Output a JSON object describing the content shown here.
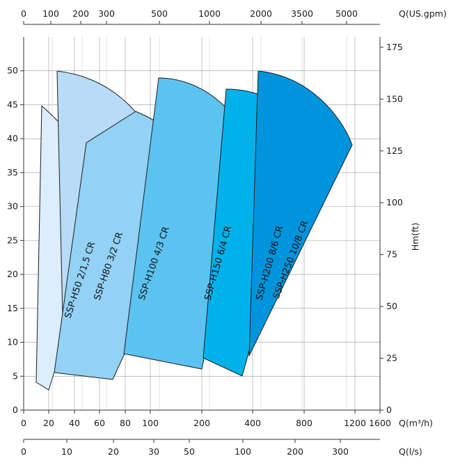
{
  "chart_data": {
    "type": "area",
    "title": "",
    "axes": {
      "bottom": {
        "label": "Q(m³/h)",
        "scale": "log",
        "ticks": [
          "0",
          "20",
          "40",
          "60",
          "80",
          "100",
          "200",
          "400",
          "800",
          "1200",
          "1600"
        ]
      },
      "top": {
        "label": "Q(US.gpm)",
        "scale": "log",
        "ticks": [
          "0",
          "100",
          "200",
          "300",
          "500",
          "1000",
          "2000",
          "3500",
          "5000"
        ]
      },
      "lower": {
        "label": "Q(l/s)",
        "scale": "log",
        "ticks": [
          "0",
          "10",
          "20",
          "30",
          "50",
          "100",
          "200",
          "300"
        ]
      },
      "left": {
        "label": "",
        "range": [
          0,
          55
        ],
        "ticks": [
          "0",
          "5",
          "10",
          "15",
          "20",
          "25",
          "30",
          "35",
          "40",
          "45",
          "50"
        ]
      },
      "right": {
        "label": "Hm(ft)",
        "range": [
          0,
          180
        ],
        "ticks": [
          "0",
          "25",
          "50",
          "75",
          "100",
          "125",
          "150",
          "175"
        ]
      }
    },
    "grid": true,
    "series": [
      {
        "name": "SSP-H50 2/1,5 CR",
        "color": "#dcedfb",
        "min_flow_m3h": 6,
        "max_flow_m3h": 65,
        "max_head_m": 45,
        "head_at_max_flow_m": 28,
        "min_head_m": 3
      },
      {
        "name": "SSP-H80 3/2 CR",
        "color": "#b8dcf7",
        "min_flow_m3h": 15,
        "max_flow_m3h": 120,
        "max_head_m": 50,
        "head_at_max_flow_m": 39,
        "min_head_m": 8
      },
      {
        "name": "SSP-H100 4/3 CR",
        "color": "#93d1f5",
        "min_flow_m3h": 20,
        "max_flow_m3h": 200,
        "max_head_m": 44,
        "head_at_max_flow_m": 34,
        "min_head_m": 4.5
      },
      {
        "name": "SSP-H150 6/4 CR",
        "color": "#5cc3f0",
        "min_flow_m3h": 70,
        "max_flow_m3h": 360,
        "max_head_m": 49,
        "head_at_max_flow_m": 40,
        "min_head_m": 6
      },
      {
        "name": "SSP-H200 8/6 CR",
        "color": "#00b1ea",
        "min_flow_m3h": 200,
        "max_flow_m3h": 800,
        "max_head_m": 47.5,
        "head_at_max_flow_m": 40,
        "min_head_m": 5
      },
      {
        "name": "SSP-H250 10/8 CR",
        "color": "#0094dc",
        "min_flow_m3h": 350,
        "max_flow_m3h": 1200,
        "max_head_m": 50,
        "head_at_max_flow_m": 39,
        "min_head_m": 8
      }
    ]
  }
}
